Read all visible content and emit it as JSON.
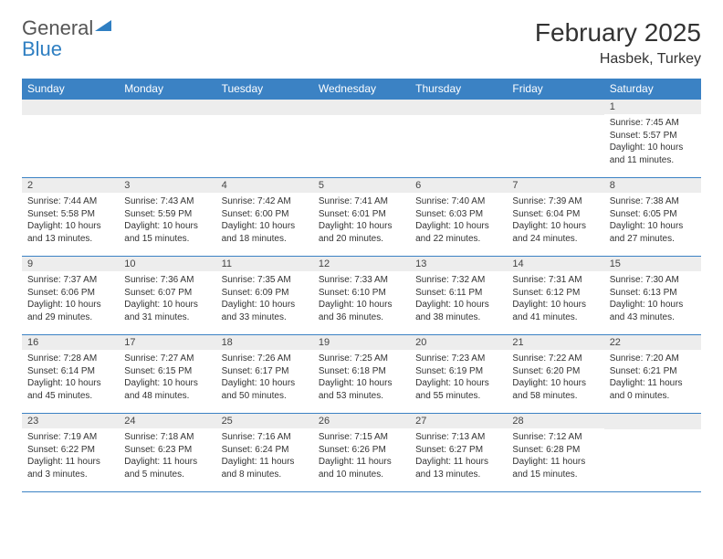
{
  "brand": {
    "part1": "General",
    "part2": "Blue"
  },
  "title": "February 2025",
  "location": "Hasbek, Turkey",
  "weekdays": [
    "Sunday",
    "Monday",
    "Tuesday",
    "Wednesday",
    "Thursday",
    "Friday",
    "Saturday"
  ],
  "colors": {
    "header_bar": "#3b82c4",
    "daynum_bg": "#ededed",
    "text": "#333333",
    "logo_blue": "#2f7fc2",
    "logo_gray": "#555555"
  },
  "weeks": [
    [
      {
        "n": "",
        "sr": "",
        "ss": "",
        "dl": ""
      },
      {
        "n": "",
        "sr": "",
        "ss": "",
        "dl": ""
      },
      {
        "n": "",
        "sr": "",
        "ss": "",
        "dl": ""
      },
      {
        "n": "",
        "sr": "",
        "ss": "",
        "dl": ""
      },
      {
        "n": "",
        "sr": "",
        "ss": "",
        "dl": ""
      },
      {
        "n": "",
        "sr": "",
        "ss": "",
        "dl": ""
      },
      {
        "n": "1",
        "sr": "Sunrise: 7:45 AM",
        "ss": "Sunset: 5:57 PM",
        "dl": "Daylight: 10 hours and 11 minutes."
      }
    ],
    [
      {
        "n": "2",
        "sr": "Sunrise: 7:44 AM",
        "ss": "Sunset: 5:58 PM",
        "dl": "Daylight: 10 hours and 13 minutes."
      },
      {
        "n": "3",
        "sr": "Sunrise: 7:43 AM",
        "ss": "Sunset: 5:59 PM",
        "dl": "Daylight: 10 hours and 15 minutes."
      },
      {
        "n": "4",
        "sr": "Sunrise: 7:42 AM",
        "ss": "Sunset: 6:00 PM",
        "dl": "Daylight: 10 hours and 18 minutes."
      },
      {
        "n": "5",
        "sr": "Sunrise: 7:41 AM",
        "ss": "Sunset: 6:01 PM",
        "dl": "Daylight: 10 hours and 20 minutes."
      },
      {
        "n": "6",
        "sr": "Sunrise: 7:40 AM",
        "ss": "Sunset: 6:03 PM",
        "dl": "Daylight: 10 hours and 22 minutes."
      },
      {
        "n": "7",
        "sr": "Sunrise: 7:39 AM",
        "ss": "Sunset: 6:04 PM",
        "dl": "Daylight: 10 hours and 24 minutes."
      },
      {
        "n": "8",
        "sr": "Sunrise: 7:38 AM",
        "ss": "Sunset: 6:05 PM",
        "dl": "Daylight: 10 hours and 27 minutes."
      }
    ],
    [
      {
        "n": "9",
        "sr": "Sunrise: 7:37 AM",
        "ss": "Sunset: 6:06 PM",
        "dl": "Daylight: 10 hours and 29 minutes."
      },
      {
        "n": "10",
        "sr": "Sunrise: 7:36 AM",
        "ss": "Sunset: 6:07 PM",
        "dl": "Daylight: 10 hours and 31 minutes."
      },
      {
        "n": "11",
        "sr": "Sunrise: 7:35 AM",
        "ss": "Sunset: 6:09 PM",
        "dl": "Daylight: 10 hours and 33 minutes."
      },
      {
        "n": "12",
        "sr": "Sunrise: 7:33 AM",
        "ss": "Sunset: 6:10 PM",
        "dl": "Daylight: 10 hours and 36 minutes."
      },
      {
        "n": "13",
        "sr": "Sunrise: 7:32 AM",
        "ss": "Sunset: 6:11 PM",
        "dl": "Daylight: 10 hours and 38 minutes."
      },
      {
        "n": "14",
        "sr": "Sunrise: 7:31 AM",
        "ss": "Sunset: 6:12 PM",
        "dl": "Daylight: 10 hours and 41 minutes."
      },
      {
        "n": "15",
        "sr": "Sunrise: 7:30 AM",
        "ss": "Sunset: 6:13 PM",
        "dl": "Daylight: 10 hours and 43 minutes."
      }
    ],
    [
      {
        "n": "16",
        "sr": "Sunrise: 7:28 AM",
        "ss": "Sunset: 6:14 PM",
        "dl": "Daylight: 10 hours and 45 minutes."
      },
      {
        "n": "17",
        "sr": "Sunrise: 7:27 AM",
        "ss": "Sunset: 6:15 PM",
        "dl": "Daylight: 10 hours and 48 minutes."
      },
      {
        "n": "18",
        "sr": "Sunrise: 7:26 AM",
        "ss": "Sunset: 6:17 PM",
        "dl": "Daylight: 10 hours and 50 minutes."
      },
      {
        "n": "19",
        "sr": "Sunrise: 7:25 AM",
        "ss": "Sunset: 6:18 PM",
        "dl": "Daylight: 10 hours and 53 minutes."
      },
      {
        "n": "20",
        "sr": "Sunrise: 7:23 AM",
        "ss": "Sunset: 6:19 PM",
        "dl": "Daylight: 10 hours and 55 minutes."
      },
      {
        "n": "21",
        "sr": "Sunrise: 7:22 AM",
        "ss": "Sunset: 6:20 PM",
        "dl": "Daylight: 10 hours and 58 minutes."
      },
      {
        "n": "22",
        "sr": "Sunrise: 7:20 AM",
        "ss": "Sunset: 6:21 PM",
        "dl": "Daylight: 11 hours and 0 minutes."
      }
    ],
    [
      {
        "n": "23",
        "sr": "Sunrise: 7:19 AM",
        "ss": "Sunset: 6:22 PM",
        "dl": "Daylight: 11 hours and 3 minutes."
      },
      {
        "n": "24",
        "sr": "Sunrise: 7:18 AM",
        "ss": "Sunset: 6:23 PM",
        "dl": "Daylight: 11 hours and 5 minutes."
      },
      {
        "n": "25",
        "sr": "Sunrise: 7:16 AM",
        "ss": "Sunset: 6:24 PM",
        "dl": "Daylight: 11 hours and 8 minutes."
      },
      {
        "n": "26",
        "sr": "Sunrise: 7:15 AM",
        "ss": "Sunset: 6:26 PM",
        "dl": "Daylight: 11 hours and 10 minutes."
      },
      {
        "n": "27",
        "sr": "Sunrise: 7:13 AM",
        "ss": "Sunset: 6:27 PM",
        "dl": "Daylight: 11 hours and 13 minutes."
      },
      {
        "n": "28",
        "sr": "Sunrise: 7:12 AM",
        "ss": "Sunset: 6:28 PM",
        "dl": "Daylight: 11 hours and 15 minutes."
      },
      {
        "n": "",
        "sr": "",
        "ss": "",
        "dl": ""
      }
    ]
  ]
}
